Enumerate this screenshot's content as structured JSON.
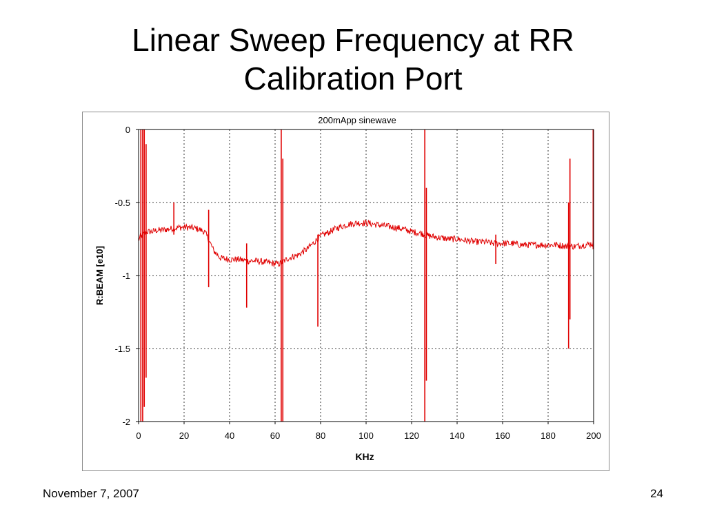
{
  "slide": {
    "title_line1": "Linear Sweep Frequency at RR",
    "title_line2": "Calibration Port",
    "footer_date": "November 7, 2007",
    "page_number": "24"
  },
  "chart_data": {
    "type": "line",
    "title": "200mApp sinewave",
    "xlabel": "KHz",
    "ylabel": "R:BEAM [e10]",
    "xlim": [
      0,
      200
    ],
    "ylim": [
      -2,
      0
    ],
    "xticks": [
      0,
      20,
      40,
      60,
      80,
      100,
      120,
      140,
      160,
      180,
      200
    ],
    "yticks": [
      0,
      -0.5,
      -1,
      -1.5,
      -2
    ],
    "ytick_labels": [
      "0",
      "-0.5",
      "-1",
      "-1.5",
      "-2"
    ],
    "grid": true,
    "line_color": "#e00000",
    "series": [
      {
        "values_description_free": true,
        "x": [
          0,
          2,
          4,
          6,
          8,
          10,
          14,
          18,
          22,
          26,
          29,
          31,
          33,
          36,
          40,
          44,
          48,
          52,
          56,
          60,
          62,
          64,
          66,
          70,
          74,
          78,
          80,
          84,
          88,
          92,
          96,
          100,
          104,
          108,
          112,
          116,
          120,
          124,
          126,
          128,
          132,
          136,
          140,
          144,
          148,
          152,
          156,
          160,
          164,
          168,
          172,
          176,
          180,
          184,
          188,
          190,
          192,
          196,
          200
        ],
        "y": [
          -0.75,
          -0.72,
          -0.7,
          -0.7,
          -0.69,
          -0.69,
          -0.68,
          -0.67,
          -0.67,
          -0.68,
          -0.7,
          -0.76,
          -0.83,
          -0.88,
          -0.89,
          -0.89,
          -0.9,
          -0.9,
          -0.91,
          -0.92,
          -0.92,
          -0.9,
          -0.88,
          -0.86,
          -0.82,
          -0.76,
          -0.73,
          -0.7,
          -0.67,
          -0.65,
          -0.64,
          -0.64,
          -0.65,
          -0.66,
          -0.67,
          -0.68,
          -0.7,
          -0.71,
          -0.72,
          -0.73,
          -0.74,
          -0.75,
          -0.75,
          -0.76,
          -0.77,
          -0.77,
          -0.78,
          -0.78,
          -0.78,
          -0.79,
          -0.79,
          -0.79,
          -0.79,
          -0.79,
          -0.8,
          -0.8,
          -0.8,
          -0.79,
          -0.78
        ]
      }
    ],
    "spikes": [
      {
        "x": 1.0,
        "ymin": -2,
        "ymax": 0
      },
      {
        "x": 1.8,
        "ymin": -2,
        "ymax": 0
      },
      {
        "x": 2.5,
        "ymin": -1.9,
        "ymax": 0
      },
      {
        "x": 3.3,
        "ymin": -1.7,
        "ymax": -0.1
      },
      {
        "x": 15.5,
        "ymin": -0.72,
        "ymax": -0.5
      },
      {
        "x": 30.8,
        "ymin": -1.08,
        "ymax": -0.55
      },
      {
        "x": 47.5,
        "ymin": -1.22,
        "ymax": -0.78
      },
      {
        "x": 62.7,
        "ymin": -2,
        "ymax": 0
      },
      {
        "x": 63.4,
        "ymin": -2,
        "ymax": -0.2
      },
      {
        "x": 78.8,
        "ymin": -1.35,
        "ymax": -0.72
      },
      {
        "x": 125.8,
        "ymin": -2,
        "ymax": 0
      },
      {
        "x": 126.5,
        "ymin": -1.72,
        "ymax": -0.4
      },
      {
        "x": 157.0,
        "ymin": -0.92,
        "ymax": -0.72
      },
      {
        "x": 189.0,
        "ymin": -1.5,
        "ymax": -0.5
      },
      {
        "x": 189.6,
        "ymin": -1.3,
        "ymax": -0.2
      },
      {
        "x": 199.8,
        "ymin": -0.82,
        "ymax": 0
      }
    ]
  }
}
